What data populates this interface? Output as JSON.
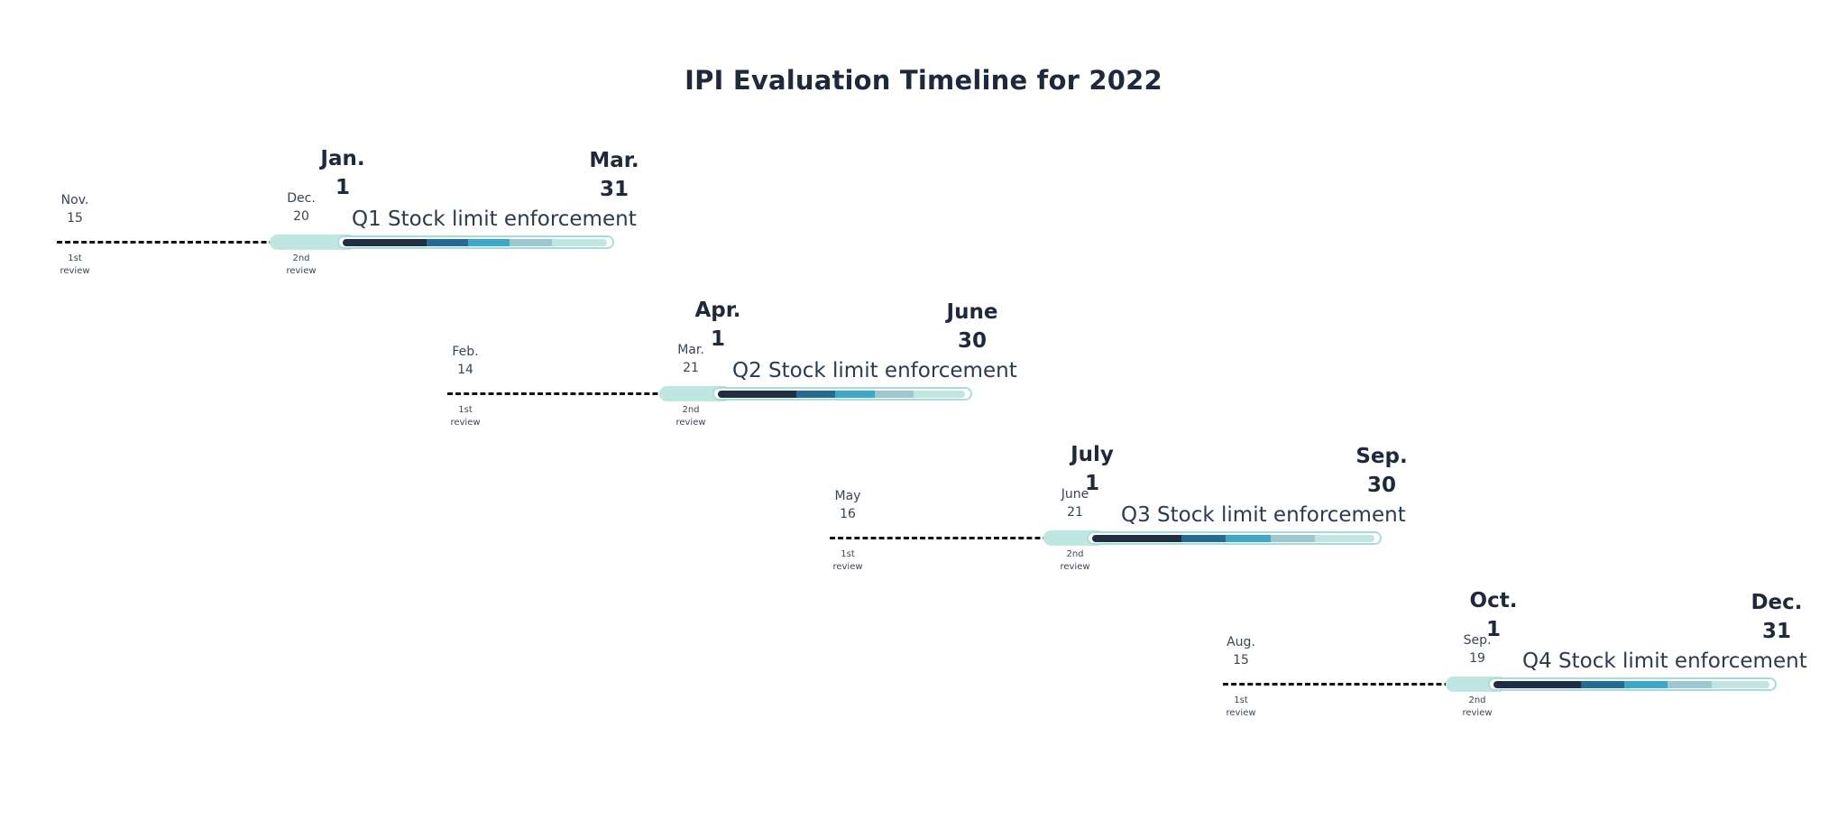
{
  "title": "IPI Evaluation Timeline for 2022",
  "colors": {
    "navy": "#1e2f45",
    "steel": "#236a96",
    "teal": "#3aa8c8",
    "haze": "#9cc8d2",
    "mint": "#bfe6e0",
    "dash": "#111111"
  },
  "quarters": [
    {
      "label": "Q1 Stock limit enforcement",
      "first_review": {
        "month": "Nov.",
        "day": "15",
        "caption": [
          "1st",
          "review"
        ]
      },
      "second_review": {
        "month": "Dec.",
        "day": "20",
        "caption": [
          "2nd",
          "review"
        ]
      },
      "start": {
        "month": "Jan.",
        "day": "1"
      },
      "end": {
        "month": "Mar.",
        "day": "31"
      }
    },
    {
      "label": "Q2 Stock limit enforcement",
      "first_review": {
        "month": "Feb.",
        "day": "14",
        "caption": [
          "1st",
          "review"
        ]
      },
      "second_review": {
        "month": "Mar.",
        "day": "21",
        "caption": [
          "2nd",
          "review"
        ]
      },
      "start": {
        "month": "Apr.",
        "day": "1"
      },
      "end": {
        "month": "June",
        "day": "30"
      }
    },
    {
      "label": "Q3 Stock limit enforcement",
      "first_review": {
        "month": "May",
        "day": "16",
        "caption": [
          "1st",
          "review"
        ]
      },
      "second_review": {
        "month": "June",
        "day": "21",
        "caption": [
          "2nd",
          "review"
        ]
      },
      "start": {
        "month": "July",
        "day": "1"
      },
      "end": {
        "month": "Sep.",
        "day": "30"
      }
    },
    {
      "label": "Q4 Stock limit enforcement",
      "first_review": {
        "month": "Aug.",
        "day": "15",
        "caption": [
          "1st",
          "review"
        ]
      },
      "second_review": {
        "month": "Sep.",
        "day": "19",
        "caption": [
          "2nd",
          "review"
        ]
      },
      "start": {
        "month": "Oct.",
        "day": "1"
      },
      "end": {
        "month": "Dec.",
        "day": "31"
      }
    }
  ]
}
